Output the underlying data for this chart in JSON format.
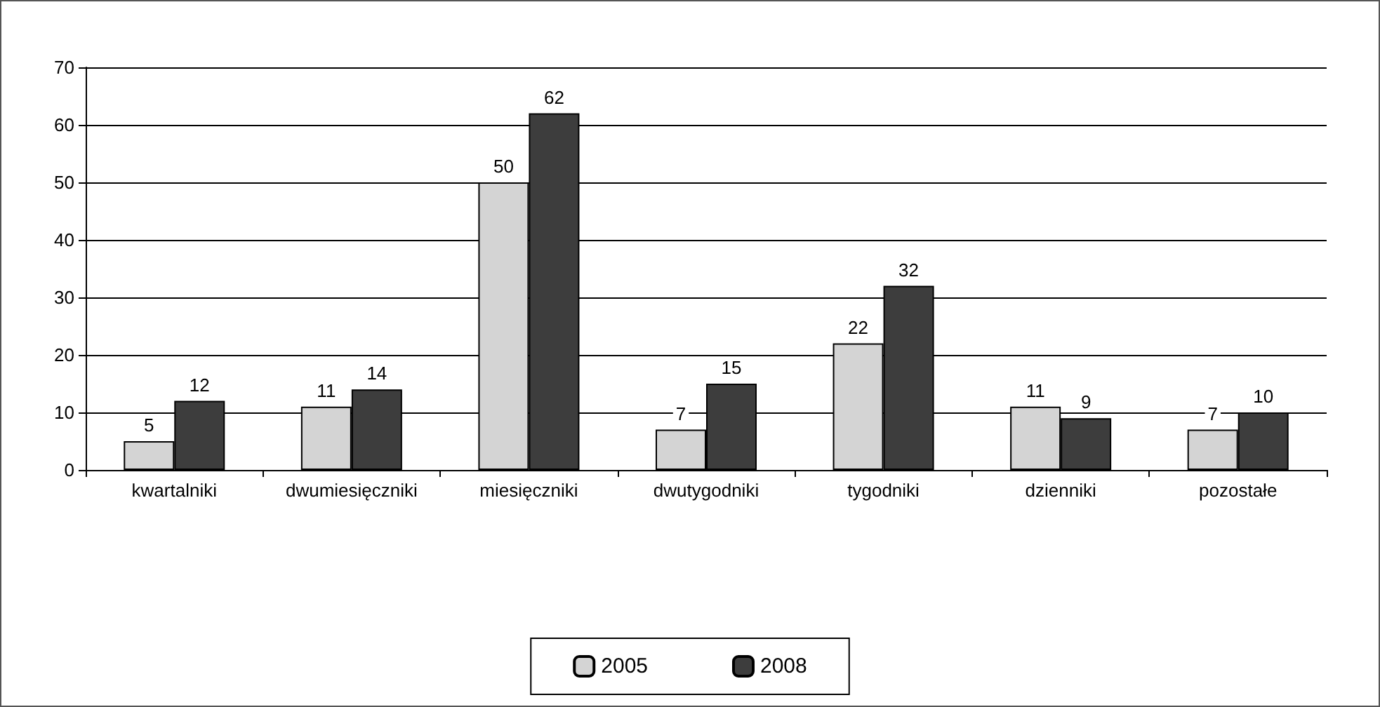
{
  "chart_data": {
    "type": "bar",
    "categories": [
      "kwartalniki",
      "dwumiesięczniki",
      "miesięczniki",
      "dwutygodniki",
      "tygodniki",
      "dzienniki",
      "pozostałe"
    ],
    "series": [
      {
        "name": "2005",
        "color": "#d4d4d4",
        "values": [
          5,
          11,
          50,
          7,
          22,
          11,
          7
        ]
      },
      {
        "name": "2008",
        "color": "#3d3d3d",
        "values": [
          12,
          14,
          62,
          15,
          32,
          9,
          10
        ]
      }
    ],
    "ylim": [
      0,
      70
    ],
    "yticks": [
      0,
      10,
      20,
      30,
      40,
      50,
      60,
      70
    ],
    "grid": "y",
    "legend": "bottom",
    "data_labels": true
  }
}
